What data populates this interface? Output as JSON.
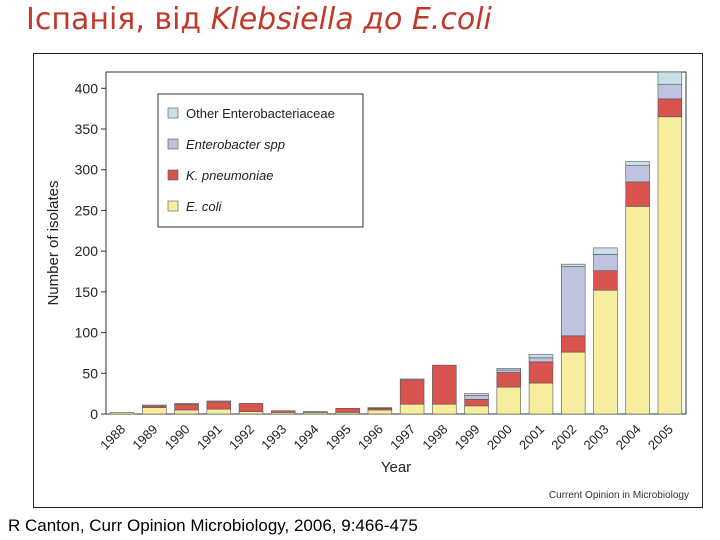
{
  "slide": {
    "title_plain": "Іспанія,  від ",
    "title_italic": "Klebsiella до E.coli",
    "citation": "R Canton, Curr Opinion Microbiology, 2006, 9:466-475"
  },
  "figure": {
    "source": "Current Opinion in Microbiology"
  },
  "chart_data": {
    "type": "bar",
    "stacked": true,
    "title": "",
    "xlabel": "Year",
    "ylabel": "Number of isolates",
    "ylim": [
      0,
      420
    ],
    "yticks": [
      0,
      50,
      100,
      150,
      200,
      250,
      300,
      350,
      400
    ],
    "grid": false,
    "legend_position": "top-left",
    "categories": [
      "1988",
      "1989",
      "1990",
      "1991",
      "1992",
      "1993",
      "1994",
      "1995",
      "1996",
      "1997",
      "1998",
      "1999",
      "2000",
      "2001",
      "2002",
      "2003",
      "2004",
      "2005"
    ],
    "series": [
      {
        "name": "E. coli",
        "color": "#f6ee9c",
        "values": [
          2,
          8,
          5,
          6,
          3,
          2,
          2,
          2,
          5,
          12,
          12,
          10,
          33,
          38,
          76,
          152,
          255,
          365
        ]
      },
      {
        "name": "K. pneumoniae",
        "color": "#d9534f",
        "values": [
          0,
          2,
          7,
          9,
          10,
          2,
          1,
          5,
          2,
          30,
          48,
          8,
          18,
          26,
          20,
          24,
          30,
          22
        ]
      },
      {
        "name": "Enterobacter spp",
        "color": "#bfc3e0",
        "values": [
          0,
          0,
          0,
          0,
          0,
          0,
          0,
          0,
          0,
          0,
          0,
          5,
          3,
          5,
          85,
          20,
          20,
          18
        ]
      },
      {
        "name": "Other Enterobacteriaceae",
        "color": "#c6e2e8",
        "values": [
          0,
          1,
          1,
          1,
          0,
          0,
          0,
          0,
          1,
          1,
          0,
          2,
          2,
          4,
          3,
          8,
          5,
          15
        ]
      }
    ],
    "legend_order": [
      "Other Enterobacteriaceae",
      "Enterobacter spp",
      "K. pneumoniae",
      "E. coli"
    ],
    "legend_italic": [
      "Enterobacter spp",
      "K. pneumoniae",
      "E. coli"
    ]
  }
}
